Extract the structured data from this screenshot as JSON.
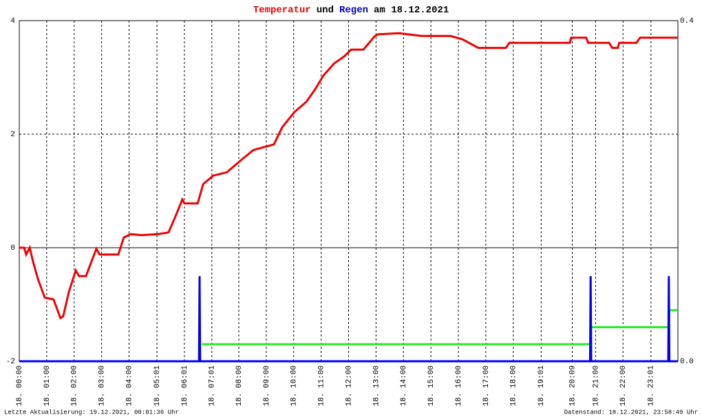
{
  "chart_data": {
    "type": "line",
    "title_mid": "und",
    "title_end": "am 18.12.2021",
    "xlim": [
      0,
      24
    ],
    "xticks": [
      {
        "value": 0,
        "label": "18. 00:00"
      },
      {
        "value": 1,
        "label": "18. 01:00"
      },
      {
        "value": 2,
        "label": "18. 02:00"
      },
      {
        "value": 3,
        "label": "18. 03:00"
      },
      {
        "value": 4,
        "label": "18. 04:00"
      },
      {
        "value": 5.017,
        "label": "18. 05:01"
      },
      {
        "value": 6.017,
        "label": "18. 06:01"
      },
      {
        "value": 7.017,
        "label": "18. 07:01"
      },
      {
        "value": 8,
        "label": "18. 08:00"
      },
      {
        "value": 9,
        "label": "18. 09:00"
      },
      {
        "value": 10,
        "label": "18. 10:00"
      },
      {
        "value": 11,
        "label": "18. 11:00"
      },
      {
        "value": 12,
        "label": "18. 12:00"
      },
      {
        "value": 13,
        "label": "18. 13:00"
      },
      {
        "value": 14,
        "label": "18. 14:00"
      },
      {
        "value": 15,
        "label": "18. 15:00"
      },
      {
        "value": 16,
        "label": "18. 16:00"
      },
      {
        "value": 17,
        "label": "18. 17:00"
      },
      {
        "value": 18,
        "label": "18. 18:00"
      },
      {
        "value": 19.017,
        "label": "18. 19:01"
      },
      {
        "value": 20.15,
        "label": "18. 20:09"
      },
      {
        "value": 21,
        "label": "18. 21:00"
      },
      {
        "value": 22,
        "label": "18. 22:00"
      },
      {
        "value": 23.017,
        "label": "18. 23:01"
      }
    ],
    "ylim": [
      -2,
      4
    ],
    "yticks": [
      -2,
      0,
      2,
      4
    ],
    "y2lim": [
      0,
      0.4
    ],
    "y2ticks": [
      {
        "value": 0,
        "label": "0.0"
      },
      0.4
    ],
    "grid": true,
    "series": [
      {
        "name": "Temperatur",
        "color": "#ee0000",
        "axis": "y",
        "x": [
          0,
          0.18,
          0.25,
          0.38,
          0.5,
          0.68,
          0.93,
          1.25,
          1.5,
          1.6,
          1.8,
          2.06,
          2.18,
          2.43,
          2.68,
          2.81,
          2.93,
          3.61,
          3.81,
          4.06,
          4.44,
          5.07,
          5.44,
          5.69,
          5.94,
          6.02,
          6.5,
          6.7,
          7.07,
          7.57,
          7.95,
          8.53,
          9.28,
          9.58,
          10.03,
          10.46,
          10.78,
          11.08,
          11.46,
          11.84,
          12.09,
          12.54,
          12.96,
          13.09,
          13.84,
          14.65,
          15.72,
          16.15,
          16.73,
          17.73,
          17.86,
          20.06,
          20.11,
          20.66,
          20.73,
          21.49,
          21.61,
          21.81,
          21.86,
          22.49,
          22.62,
          24
        ],
        "values": [
          0,
          0,
          -0.12,
          0,
          -0.24,
          -0.55,
          -0.88,
          -0.91,
          -1.24,
          -1.21,
          -0.79,
          -0.4,
          -0.5,
          -0.5,
          -0.18,
          -0.02,
          -0.12,
          -0.12,
          0.18,
          0.24,
          0.22,
          0.24,
          0.27,
          0.55,
          0.85,
          0.78,
          0.78,
          1.12,
          1.27,
          1.33,
          1.49,
          1.72,
          1.82,
          2.12,
          2.39,
          2.57,
          2.79,
          3.03,
          3.24,
          3.37,
          3.49,
          3.49,
          3.73,
          3.76,
          3.78,
          3.73,
          3.73,
          3.67,
          3.52,
          3.52,
          3.61,
          3.61,
          3.7,
          3.7,
          3.61,
          3.61,
          3.52,
          3.52,
          3.61,
          3.61,
          3.7,
          3.7
        ]
      },
      {
        "name": "Regen",
        "color": "#0000ee",
        "axis": "y2",
        "x": [
          0,
          6.55,
          6.57,
          6.59,
          20.8,
          20.82,
          20.84,
          23.65,
          23.67,
          23.69,
          24
        ],
        "values": [
          0,
          0,
          0.1,
          0,
          0,
          0.1,
          0,
          0,
          0.1,
          0,
          0
        ]
      },
      {
        "color": "#22ee22",
        "axis": "y2",
        "x": [
          6.65,
          20.8,
          20.84,
          23.67,
          23.69,
          24
        ],
        "values": [
          0.02,
          0.02,
          0.04,
          0.04,
          0.06,
          0.06
        ]
      }
    ],
    "footer_left": "Letzte Aktualisierung: 19.12.2021, 00:01:36 Uhr",
    "footer_right": "Datenstand: 18.12.2021, 23:58:49 Uhr"
  }
}
